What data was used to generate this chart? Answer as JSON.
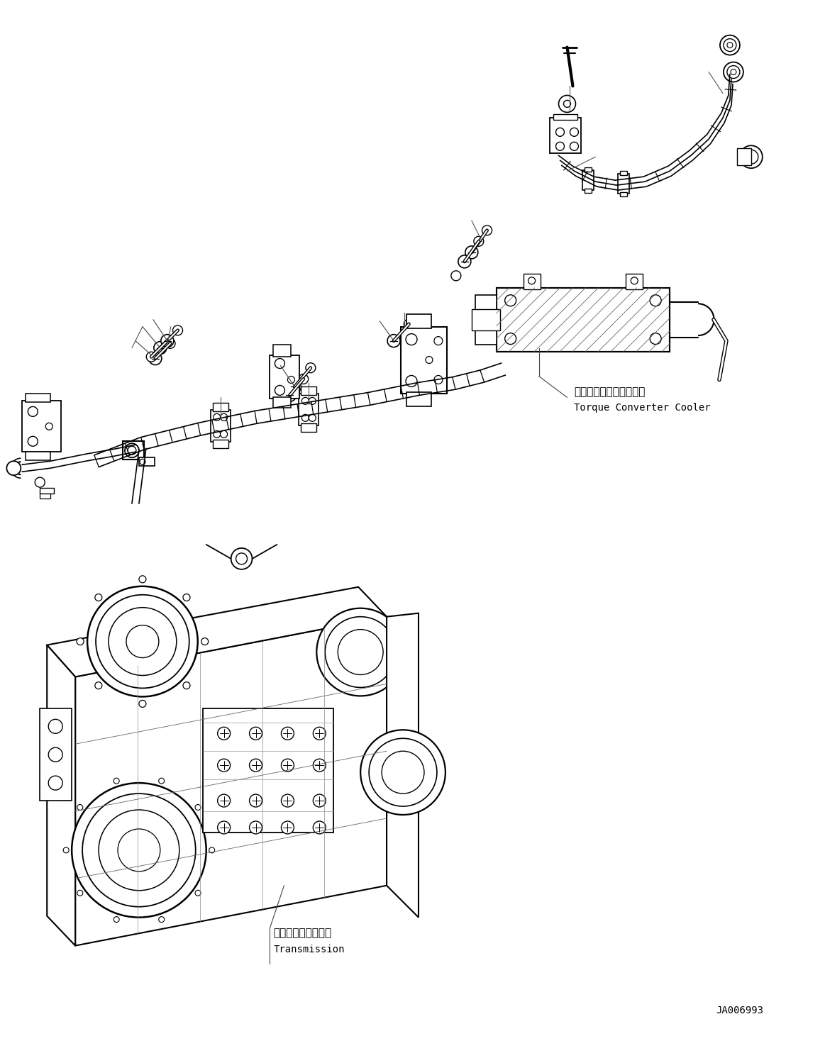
{
  "background_color": "#ffffff",
  "fig_width": 11.63,
  "fig_height": 14.68,
  "dpi": 100,
  "label_torque_jp": "トルクコンバータクーラ",
  "label_torque_en": "Torque Converter Cooler",
  "label_trans_jp": "トランスミッション",
  "label_trans_en": "Transmission",
  "label_id": "JA006993",
  "line_color": "#000000"
}
